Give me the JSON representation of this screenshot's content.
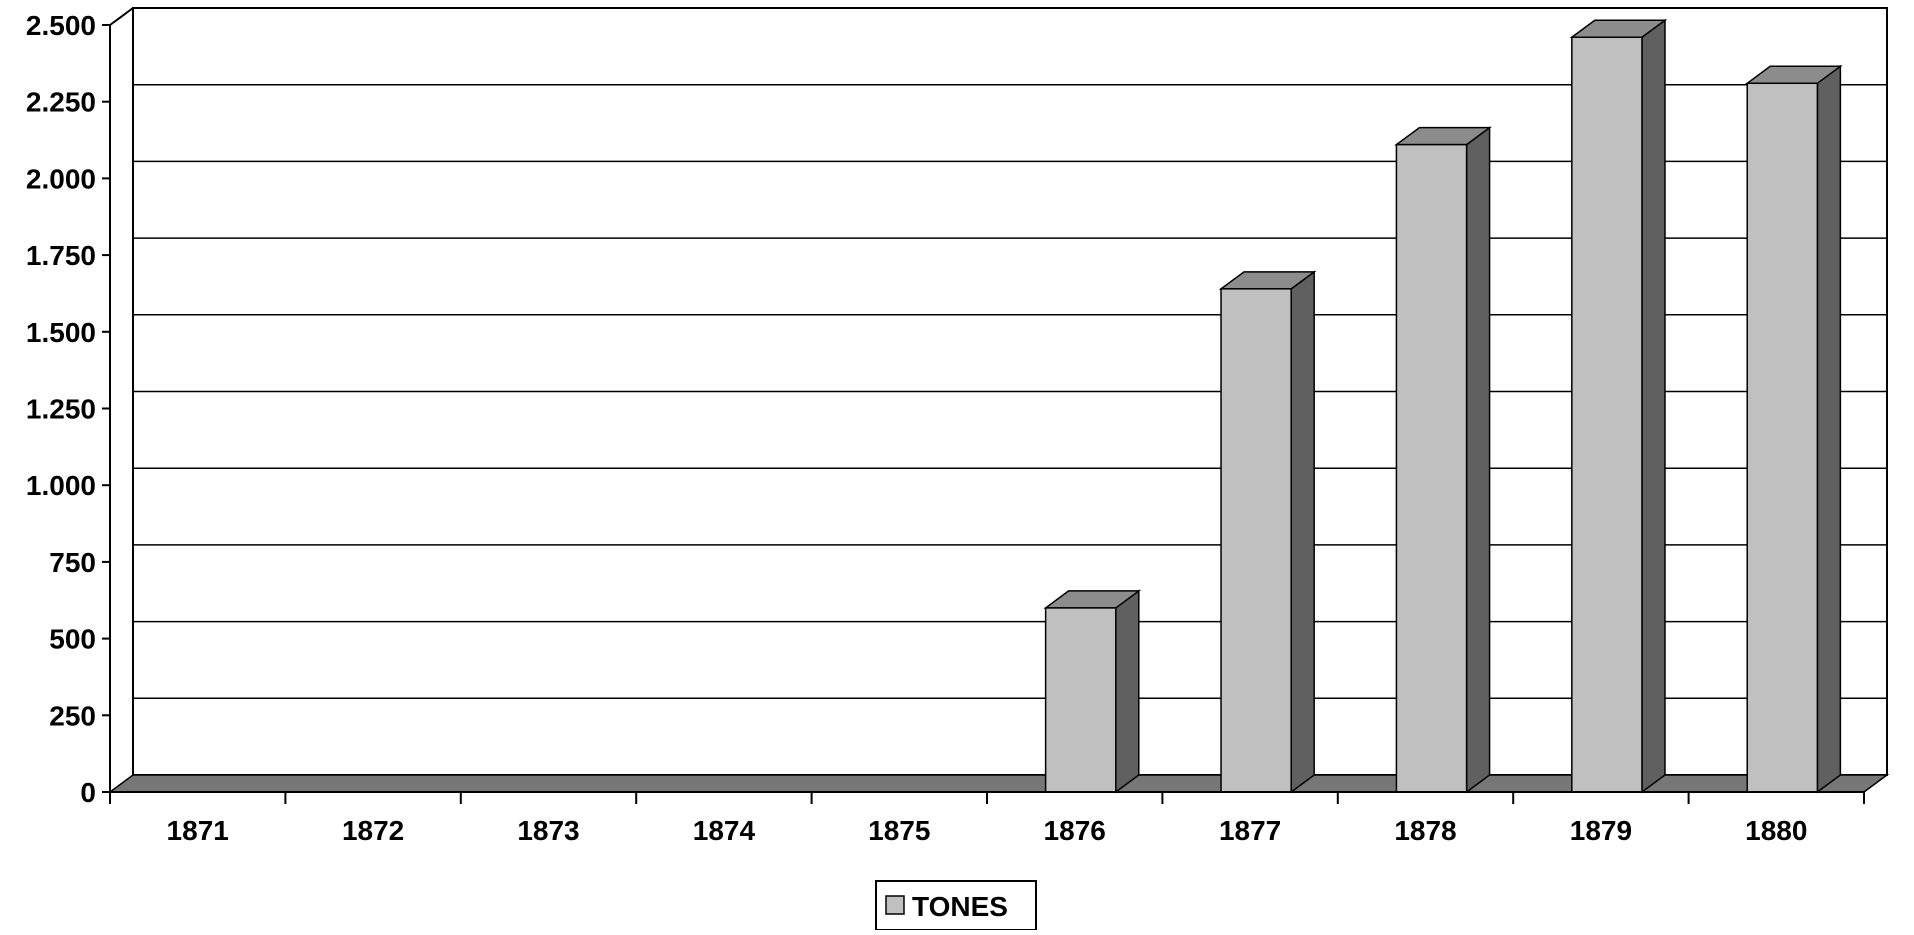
{
  "chart_data": {
    "type": "bar",
    "title": "",
    "xlabel": "",
    "ylabel": "",
    "categories": [
      "1871",
      "1872",
      "1873",
      "1874",
      "1875",
      "1876",
      "1877",
      "1878",
      "1879",
      "1880"
    ],
    "series": [
      {
        "name": "TONES",
        "values": [
          0,
          0,
          0,
          0,
          0,
          600,
          1640,
          2110,
          2460,
          2310
        ]
      }
    ],
    "ylim": [
      0,
      2500
    ],
    "yticks": [
      0,
      250,
      500,
      750,
      1000,
      1250,
      1500,
      1750,
      2000,
      2250,
      2500
    ],
    "ytick_labels": [
      "0",
      "250",
      "500",
      "750",
      "1.000",
      "1.250",
      "1.500",
      "1.750",
      "2.000",
      "2.250",
      "2.500"
    ],
    "grid": true,
    "three_d": true,
    "legend_position": "bottom-center",
    "colors": {
      "bar_front": "#c0c0c0",
      "bar_side": "#606060",
      "bar_top": "#8c8c8c",
      "floor": "#777777",
      "gridline": "#000000",
      "axis": "#000000"
    }
  }
}
